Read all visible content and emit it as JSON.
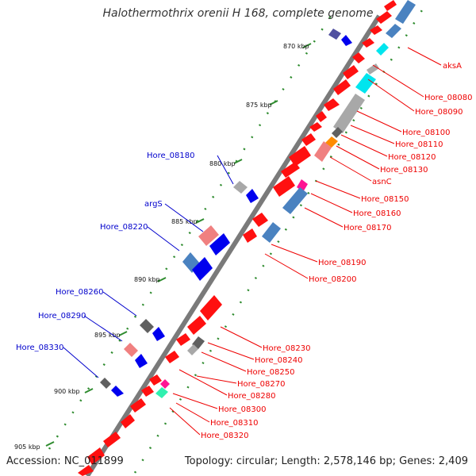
{
  "title": "Halothermothrix orenii H 168, complete genome",
  "footer": {
    "accession": "Accession: NC_011899",
    "topology": "Topology: circular; Length: 2,578,146 bp; Genes: 2,409"
  },
  "colors": {
    "backbone": "#7a7a7a",
    "tick": "#2e8b2e",
    "right_label": "#ee0000",
    "left_label": "#0000cc",
    "red": "#ff1010",
    "salmon": "#f08080",
    "steel": "#4a82c0",
    "cyan": "#00e5ee",
    "gray": "#a8a8a8",
    "darkgray": "#606060",
    "blue": "#0000ee",
    "orange": "#ff8c00",
    "magenta": "#ff1493",
    "aqua": "#30f0b0",
    "purple": "#5050a0"
  },
  "kbp_labels": [
    "870 kbp",
    "875 kbp",
    "880 kbp",
    "885 kbp",
    "890 kbp",
    "895 kbp",
    "900 kbp",
    "905 kbp"
  ],
  "right_labels": [
    "aksA",
    "Hore_08080",
    "Hore_08090",
    "Hore_08100",
    "Hore_08110",
    "Hore_08120",
    "Hore_08130",
    "asnC",
    "Hore_08150",
    "Hore_08160",
    "Hore_08170",
    "Hore_08190",
    "Hore_08200",
    "Hore_08230",
    "Hore_08240",
    "Hore_08250",
    "Hore_08270",
    "Hore_08280",
    "Hore_08300",
    "Hore_08310",
    "Hore_08320"
  ],
  "left_labels": [
    "Hore_08180",
    "argS",
    "Hore_08220",
    "Hore_08260",
    "Hore_08290",
    "Hore_08330"
  ]
}
